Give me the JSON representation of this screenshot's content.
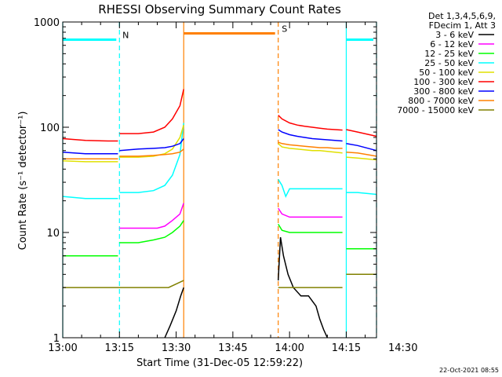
{
  "chart_data": {
    "type": "line",
    "title": "RHESSI Observing Summary Count Rates",
    "xlabel": "Start Time (31-Dec-05 12:59:22)",
    "ylabel": "Count Rate (s⁻¹ detector⁻¹)",
    "x_unit": "minutes since 13:00",
    "xlim": [
      0,
      41.5
    ],
    "x_ticks": [
      {
        "v": 0,
        "label": "13:00"
      },
      {
        "v": 7.5,
        "label": "13:15"
      },
      {
        "v": 15,
        "label": "13:30"
      },
      {
        "v": 22.5,
        "label": "13:45"
      },
      {
        "v": 30,
        "label": "14:00"
      },
      {
        "v": 37.5,
        "label": "14:15"
      },
      {
        "v": 45,
        "label": "14:30"
      }
    ],
    "y_scale": "log",
    "ylim": [
      1,
      1000
    ],
    "y_ticks": [
      {
        "v": 1,
        "label": "1"
      },
      {
        "v": 10,
        "label": "10"
      },
      {
        "v": 100,
        "label": "100"
      },
      {
        "v": 1000,
        "label": "1000"
      }
    ],
    "legend": {
      "placement": "right",
      "header": [
        "Det 1,3,4,5,6,9,",
        "FDecim 1, Att 3"
      ]
    },
    "series": [
      {
        "name": "3 - 6 keV",
        "color": "#000000",
        "segments": [
          [
            [
              13.5,
              1
            ],
            [
              14.2,
              1.3
            ],
            [
              15,
              1.8
            ],
            [
              15.6,
              2.5
            ],
            [
              16,
              3
            ]
          ],
          [
            [
              28.5,
              3.5
            ],
            [
              28.8,
              9
            ],
            [
              29.2,
              6
            ],
            [
              29.8,
              4
            ],
            [
              30.5,
              3
            ],
            [
              31.5,
              2.5
            ],
            [
              32.5,
              2.5
            ],
            [
              33.5,
              2
            ],
            [
              34,
              1.5
            ],
            [
              34.5,
              1.2
            ],
            [
              35,
              1
            ]
          ]
        ]
      },
      {
        "name": "6 - 12 keV",
        "color": "#ff00ff",
        "segments": [
          [
            [
              7.5,
              11
            ],
            [
              10,
              11
            ],
            [
              12.5,
              11
            ],
            [
              13.5,
              11.5
            ],
            [
              14.5,
              13
            ],
            [
              15.5,
              15
            ],
            [
              16,
              19
            ]
          ],
          [
            [
              28.5,
              17
            ],
            [
              29,
              15
            ],
            [
              30,
              14
            ],
            [
              31,
              14
            ],
            [
              32,
              14
            ],
            [
              33,
              14
            ],
            [
              34,
              14
            ],
            [
              35,
              14
            ],
            [
              36,
              14
            ],
            [
              37,
              14
            ]
          ]
        ]
      },
      {
        "name": "12 - 25 keV",
        "color": "#00ff00",
        "segments": [
          [
            [
              0,
              6
            ],
            [
              3,
              6
            ],
            [
              6,
              6
            ],
            [
              7.3,
              6
            ]
          ],
          [
            [
              7.5,
              8
            ],
            [
              10,
              8
            ],
            [
              12,
              8.5
            ],
            [
              13.5,
              9
            ],
            [
              14.5,
              10
            ],
            [
              15.5,
              11.5
            ],
            [
              16,
              13
            ]
          ],
          [
            [
              28.5,
              12
            ],
            [
              29,
              10.5
            ],
            [
              30,
              10
            ],
            [
              31,
              10
            ],
            [
              32,
              10
            ],
            [
              33,
              10
            ],
            [
              34,
              10
            ],
            [
              35,
              10
            ],
            [
              36,
              10
            ],
            [
              37,
              10
            ]
          ],
          [
            [
              37.5,
              7
            ],
            [
              39,
              7
            ],
            [
              41.5,
              7
            ]
          ]
        ]
      },
      {
        "name": "25 - 50 keV",
        "color": "#00ffff",
        "segments": [
          [
            [
              0,
              22
            ],
            [
              3,
              21
            ],
            [
              6,
              21
            ],
            [
              7.3,
              21
            ]
          ],
          [
            [
              7.5,
              24
            ],
            [
              10,
              24
            ],
            [
              12,
              25
            ],
            [
              13.5,
              28
            ],
            [
              14.5,
              35
            ],
            [
              15.5,
              55
            ],
            [
              16,
              110
            ]
          ],
          [
            [
              28.5,
              32
            ],
            [
              29,
              28
            ],
            [
              29.5,
              22
            ],
            [
              30,
              26
            ],
            [
              31,
              26
            ],
            [
              32,
              26
            ],
            [
              33,
              26
            ],
            [
              34,
              26
            ],
            [
              35,
              26
            ],
            [
              36,
              26
            ],
            [
              37,
              26
            ]
          ],
          [
            [
              37.5,
              24
            ],
            [
              39,
              24
            ],
            [
              41.5,
              23
            ]
          ]
        ]
      },
      {
        "name": "50 - 100 keV",
        "color": "#e0e000",
        "segments": [
          [
            [
              0,
              48
            ],
            [
              3,
              47
            ],
            [
              6,
              47
            ],
            [
              7.3,
              47
            ]
          ],
          [
            [
              7.5,
              52
            ],
            [
              10,
              52
            ],
            [
              12,
              53
            ],
            [
              13.5,
              56
            ],
            [
              14.5,
              62
            ],
            [
              15.5,
              80
            ],
            [
              16,
              105
            ]
          ],
          [
            [
              28.5,
              70
            ],
            [
              29,
              65
            ],
            [
              30,
              63
            ],
            [
              31,
              62
            ],
            [
              32,
              61
            ],
            [
              33,
              60
            ],
            [
              34,
              60
            ],
            [
              35,
              59
            ],
            [
              36,
              58
            ],
            [
              37,
              57
            ]
          ],
          [
            [
              37.5,
              52
            ],
            [
              39,
              51
            ],
            [
              41.5,
              49
            ]
          ]
        ]
      },
      {
        "name": "100 - 300 keV",
        "color": "#ff0000",
        "segments": [
          [
            [
              0,
              78
            ],
            [
              3,
              75
            ],
            [
              6,
              74
            ],
            [
              7.3,
              74
            ]
          ],
          [
            [
              7.5,
              87
            ],
            [
              10,
              87
            ],
            [
              12,
              90
            ],
            [
              13.5,
              100
            ],
            [
              14.5,
              120
            ],
            [
              15.5,
              160
            ],
            [
              16,
              230
            ]
          ],
          [
            [
              28.5,
              130
            ],
            [
              29,
              120
            ],
            [
              30,
              110
            ],
            [
              31,
              105
            ],
            [
              32,
              102
            ],
            [
              33,
              100
            ],
            [
              34,
              98
            ],
            [
              35,
              96
            ],
            [
              36,
              95
            ],
            [
              37,
              94
            ]
          ],
          [
            [
              37.5,
              95
            ],
            [
              39,
              90
            ],
            [
              41.5,
              82
            ]
          ]
        ]
      },
      {
        "name": "300 - 800 keV",
        "color": "#0000ff",
        "segments": [
          [
            [
              0,
              58
            ],
            [
              3,
              56
            ],
            [
              6,
              56
            ],
            [
              7.3,
              56
            ]
          ],
          [
            [
              7.5,
              60
            ],
            [
              10,
              62
            ],
            [
              12,
              63
            ],
            [
              13.5,
              64
            ],
            [
              14.5,
              66
            ],
            [
              15.5,
              70
            ],
            [
              16,
              78
            ]
          ],
          [
            [
              28.5,
              95
            ],
            [
              29,
              90
            ],
            [
              30,
              85
            ],
            [
              31,
              82
            ],
            [
              32,
              80
            ],
            [
              33,
              78
            ],
            [
              34,
              77
            ],
            [
              35,
              76
            ],
            [
              36,
              75
            ],
            [
              37,
              74
            ]
          ],
          [
            [
              37.5,
              70
            ],
            [
              39,
              67
            ],
            [
              41.5,
              60
            ]
          ]
        ]
      },
      {
        "name": "800 - 7000 keV",
        "color": "#ff8000",
        "segments": [
          [
            [
              0,
              50
            ],
            [
              3,
              50
            ],
            [
              6,
              50
            ],
            [
              7.3,
              50
            ]
          ],
          [
            [
              7.5,
              53
            ],
            [
              10,
              53
            ],
            [
              12,
              54
            ],
            [
              13.5,
              55
            ],
            [
              14.5,
              56
            ],
            [
              15.5,
              58
            ],
            [
              16,
              62
            ]
          ],
          [
            [
              28.5,
              72
            ],
            [
              29,
              70
            ],
            [
              30,
              68
            ],
            [
              31,
              67
            ],
            [
              32,
              66
            ],
            [
              33,
              65
            ],
            [
              34,
              64
            ],
            [
              35,
              64
            ],
            [
              36,
              63
            ],
            [
              37,
              63
            ]
          ],
          [
            [
              37.5,
              58
            ],
            [
              39,
              57
            ],
            [
              41.5,
              53
            ]
          ]
        ]
      },
      {
        "name": "7000 - 15000 keV",
        "color": "#808000",
        "segments": [
          [
            [
              0,
              3
            ],
            [
              2,
              3
            ],
            [
              4,
              3
            ],
            [
              6,
              3
            ],
            [
              8,
              3
            ],
            [
              10,
              3
            ],
            [
              12,
              3
            ],
            [
              14,
              3
            ],
            [
              16,
              3.5
            ]
          ],
          [
            [
              28.5,
              3
            ],
            [
              30,
              3
            ],
            [
              32,
              3
            ],
            [
              34,
              3
            ],
            [
              36,
              3
            ],
            [
              37,
              3
            ]
          ],
          [
            [
              37.5,
              4
            ],
            [
              39,
              4
            ],
            [
              41,
              4
            ],
            [
              41.5,
              4
            ]
          ]
        ]
      }
    ],
    "annotations": [
      {
        "type": "vline",
        "x": 0,
        "color": "#00ffff",
        "style": "solid"
      },
      {
        "type": "vline",
        "x": 7.5,
        "color": "#00ffff",
        "style": "dashed"
      },
      {
        "type": "hbar",
        "x0": 0,
        "x1": 7.5,
        "y": 680,
        "color": "#00ffff",
        "label": "N"
      },
      {
        "type": "vline",
        "x": 16,
        "color": "#ff8000",
        "style": "solid"
      },
      {
        "type": "vline",
        "x": 28.5,
        "color": "#ff8000",
        "style": "dashed"
      },
      {
        "type": "hbar",
        "x0": 16,
        "x1": 28.5,
        "y": 780,
        "color": "#ff8000",
        "label": "S"
      },
      {
        "type": "vline",
        "x": 37.5,
        "color": "#00ffff",
        "style": "solid"
      },
      {
        "type": "vline",
        "x": 41.5,
        "color": "#00ffff",
        "style": "dashed"
      },
      {
        "type": "hbar",
        "x0": 37.5,
        "x1": 41.5,
        "y": 680,
        "color": "#00ffff",
        "label": ""
      }
    ]
  },
  "timestamp": "22-Oct-2021 08:55"
}
